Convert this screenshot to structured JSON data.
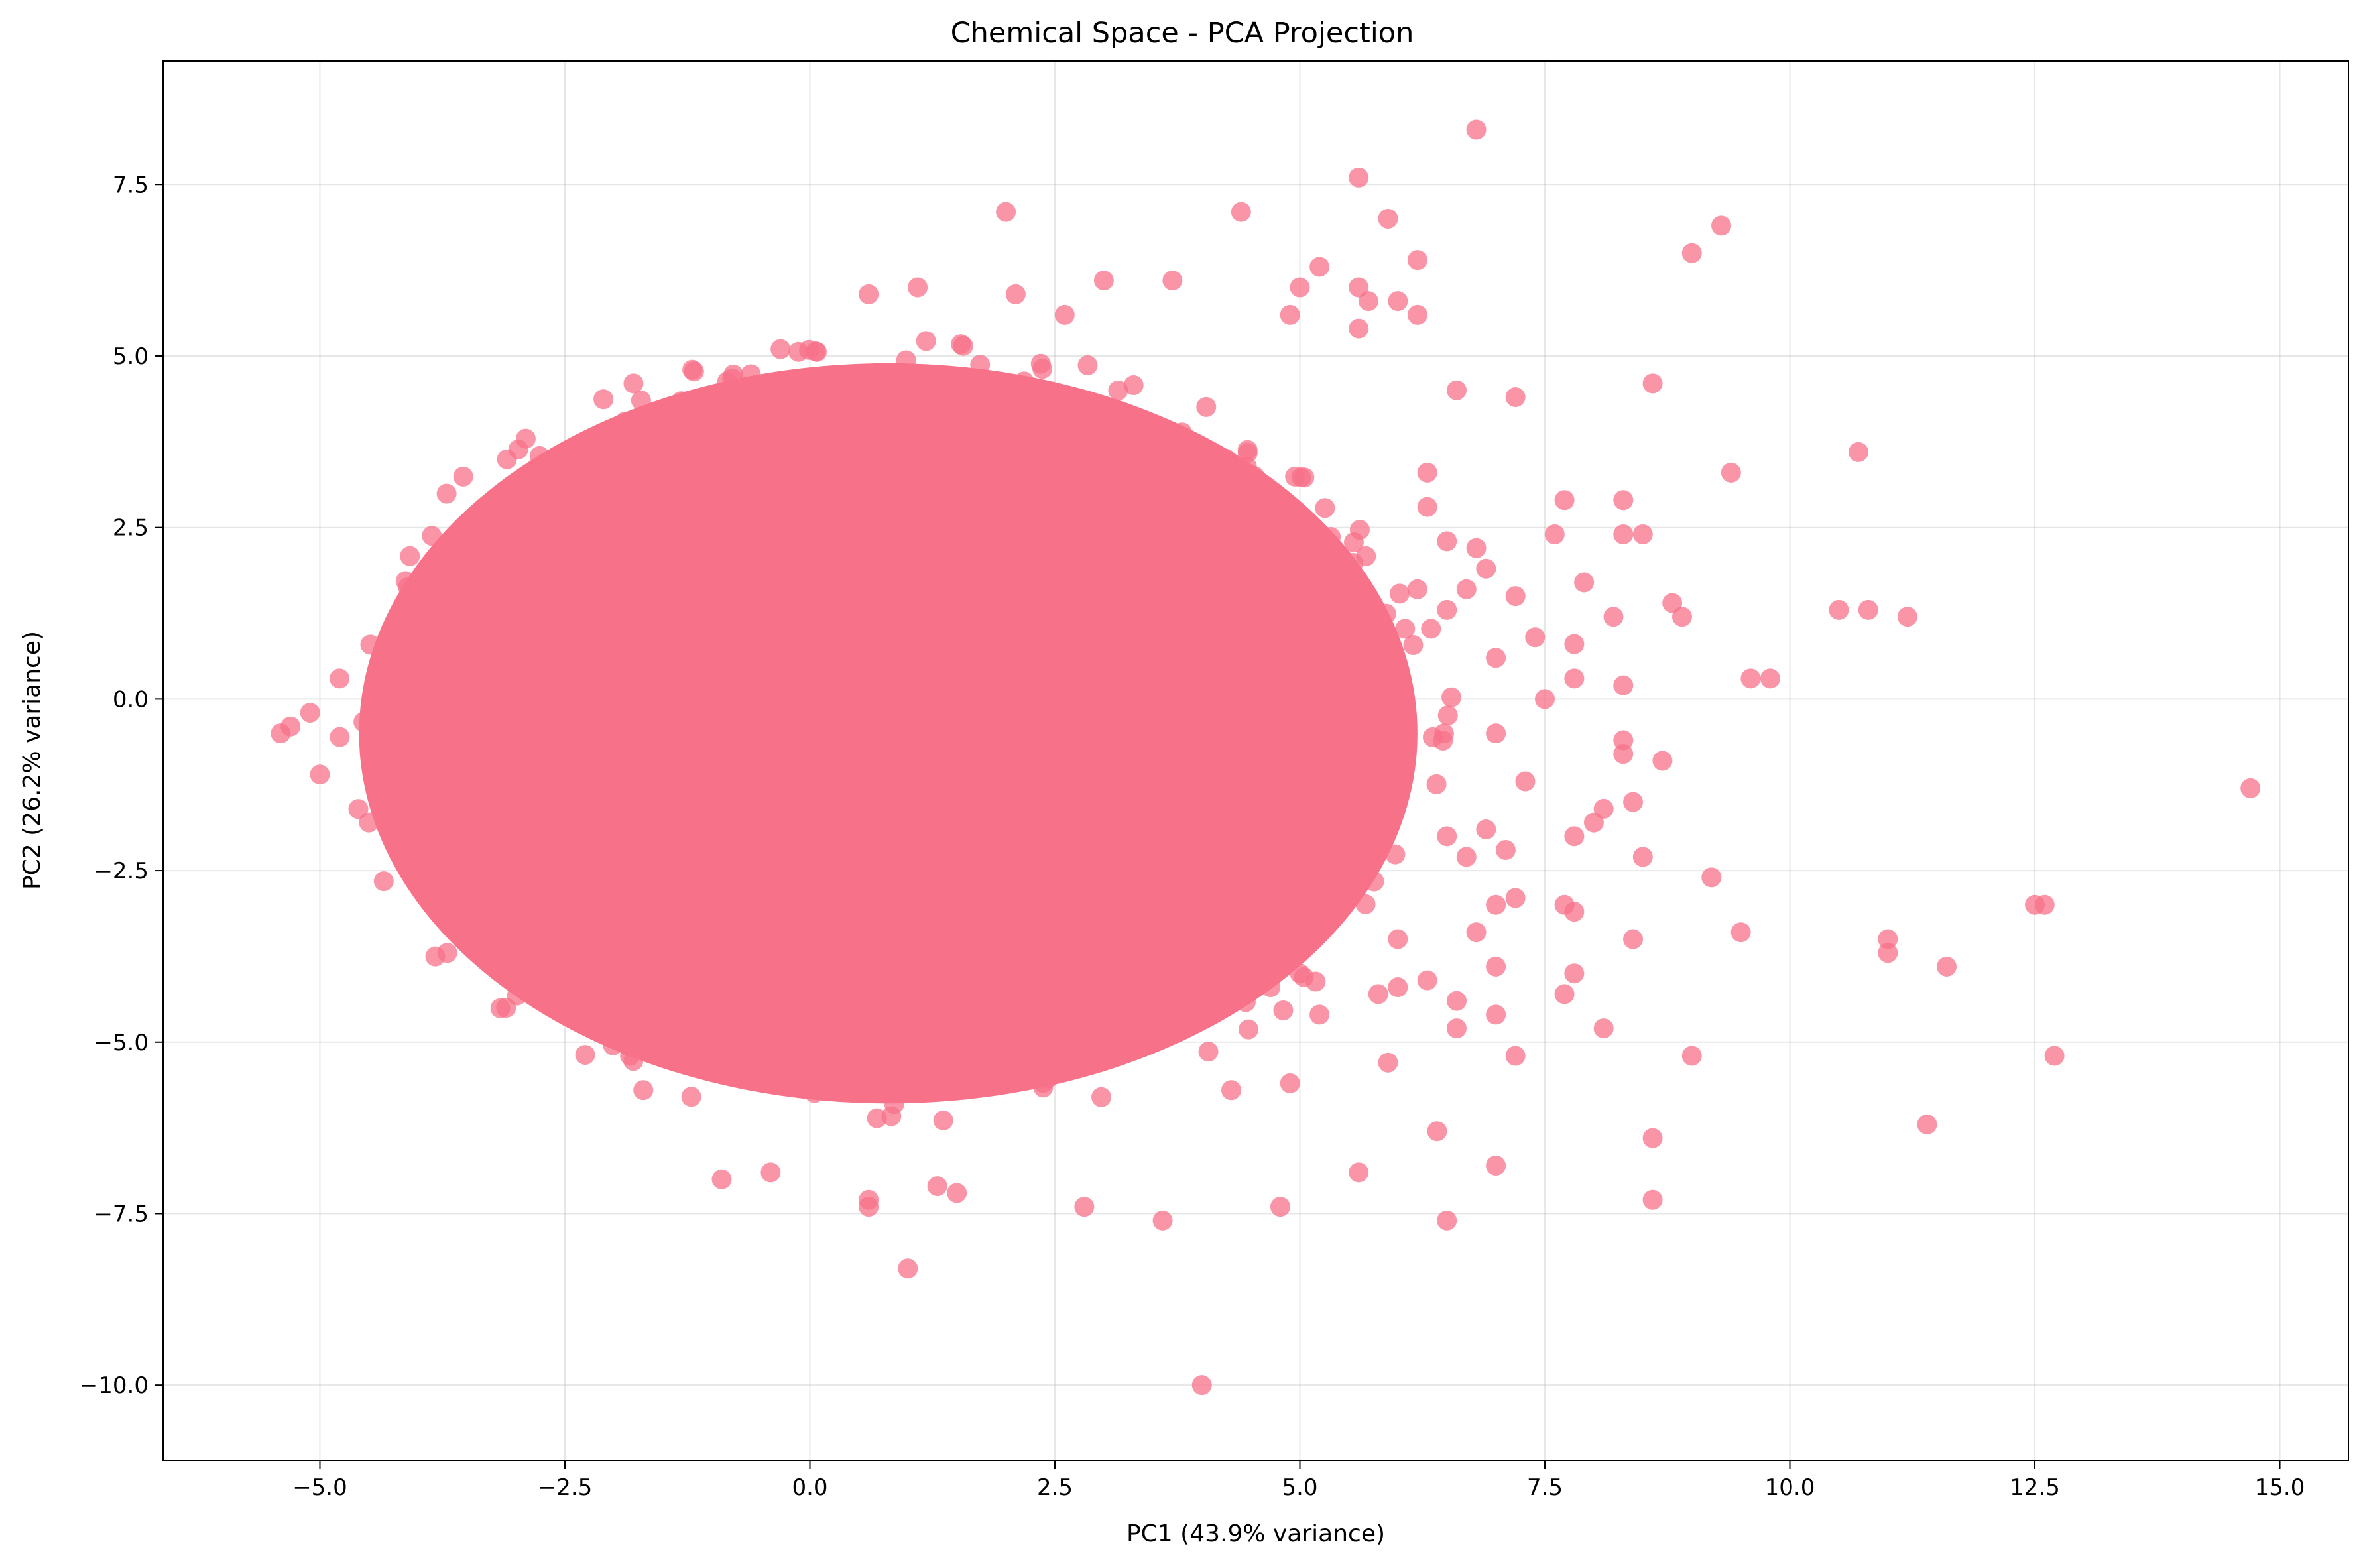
{
  "chart_data": {
    "type": "scatter",
    "title": "Chemical Space - PCA Projection",
    "xlabel": "PC1 (43.9% variance)",
    "ylabel": "PC2 (26.2% variance)",
    "xlim": [
      -6.6,
      15.7
    ],
    "ylim": [
      -11.1,
      9.3
    ],
    "xticks": [
      -5.0,
      -2.5,
      0.0,
      2.5,
      5.0,
      7.5,
      10.0,
      12.5,
      15.0
    ],
    "xtick_labels": [
      "−5.0",
      "−2.5",
      "0.0",
      "2.5",
      "5.0",
      "7.5",
      "10.0",
      "12.5",
      "15.0"
    ],
    "yticks": [
      -10.0,
      -7.5,
      -5.0,
      -2.5,
      0.0,
      2.5,
      5.0,
      7.5
    ],
    "ytick_labels": [
      "−10.0",
      "−7.5",
      "−5.0",
      "−2.5",
      "0.0",
      "2.5",
      "5.0",
      "7.5"
    ],
    "grid": true,
    "legend": "none",
    "marker_color": "#f77189",
    "marker_alpha": 0.75,
    "dense_core": {
      "description_is_not_rendered": false,
      "x_range": [
        -4.6,
        6.2
      ],
      "y_range": [
        -6.0,
        5.6
      ],
      "center": [
        0.8,
        -0.5
      ]
    },
    "points": [
      {
        "x": 6.8,
        "y": 8.3
      },
      {
        "x": 5.6,
        "y": 7.6
      },
      {
        "x": 4.4,
        "y": 7.1
      },
      {
        "x": 2.0,
        "y": 7.1
      },
      {
        "x": 9.3,
        "y": 6.9
      },
      {
        "x": 5.9,
        "y": 7.0
      },
      {
        "x": 9.0,
        "y": 6.5
      },
      {
        "x": 6.2,
        "y": 6.4
      },
      {
        "x": 10.7,
        "y": 3.6
      },
      {
        "x": 9.4,
        "y": 3.3
      },
      {
        "x": 8.6,
        "y": 4.6
      },
      {
        "x": 7.2,
        "y": 4.4
      },
      {
        "x": 6.6,
        "y": 4.5
      },
      {
        "x": 7.7,
        "y": 2.9
      },
      {
        "x": 8.3,
        "y": 2.9
      },
      {
        "x": 8.5,
        "y": 2.4
      },
      {
        "x": 8.3,
        "y": 2.4
      },
      {
        "x": 7.6,
        "y": 2.4
      },
      {
        "x": 10.5,
        "y": 1.3
      },
      {
        "x": 10.8,
        "y": 1.3
      },
      {
        "x": 11.2,
        "y": 1.2
      },
      {
        "x": 8.8,
        "y": 1.4
      },
      {
        "x": 8.9,
        "y": 1.2
      },
      {
        "x": 8.2,
        "y": 1.2
      },
      {
        "x": 7.9,
        "y": 1.7
      },
      {
        "x": 9.6,
        "y": 0.3
      },
      {
        "x": 9.8,
        "y": 0.3
      },
      {
        "x": 8.3,
        "y": 0.2
      },
      {
        "x": 7.8,
        "y": 0.3
      },
      {
        "x": 7.8,
        "y": 0.8
      },
      {
        "x": 14.7,
        "y": -1.3
      },
      {
        "x": 12.5,
        "y": -3.0
      },
      {
        "x": 12.6,
        "y": -3.0
      },
      {
        "x": 12.7,
        "y": -5.2
      },
      {
        "x": 11.0,
        "y": -3.5
      },
      {
        "x": 11.0,
        "y": -3.7
      },
      {
        "x": 11.6,
        "y": -3.9
      },
      {
        "x": 11.4,
        "y": -6.2
      },
      {
        "x": 9.5,
        "y": -3.4
      },
      {
        "x": 9.2,
        "y": -2.6
      },
      {
        "x": 9.0,
        "y": -5.2
      },
      {
        "x": 8.6,
        "y": -6.4
      },
      {
        "x": 8.6,
        "y": -7.3
      },
      {
        "x": 8.4,
        "y": -3.5
      },
      {
        "x": 8.5,
        "y": -2.3
      },
      {
        "x": 8.4,
        "y": -1.5
      },
      {
        "x": 8.7,
        "y": -0.9
      },
      {
        "x": 8.3,
        "y": -0.6
      },
      {
        "x": 8.3,
        "y": -0.8
      },
      {
        "x": 8.0,
        "y": -1.8
      },
      {
        "x": 8.1,
        "y": -1.6
      },
      {
        "x": 7.8,
        "y": -2.0
      },
      {
        "x": 7.7,
        "y": -3.0
      },
      {
        "x": 7.8,
        "y": -3.1
      },
      {
        "x": 7.8,
        "y": -4.0
      },
      {
        "x": 7.7,
        "y": -4.3
      },
      {
        "x": 8.1,
        "y": -4.8
      },
      {
        "x": 7.2,
        "y": -5.2
      },
      {
        "x": 7.0,
        "y": -6.8
      },
      {
        "x": 6.4,
        "y": -6.3
      },
      {
        "x": 6.5,
        "y": -7.6
      },
      {
        "x": 5.6,
        "y": -6.9
      },
      {
        "x": 4.8,
        "y": -7.4
      },
      {
        "x": 4.0,
        "y": -10.0
      },
      {
        "x": 3.6,
        "y": -7.6
      },
      {
        "x": 2.8,
        "y": -7.4
      },
      {
        "x": 1.0,
        "y": -8.3
      },
      {
        "x": 0.6,
        "y": -7.3
      },
      {
        "x": 0.6,
        "y": -7.4
      },
      {
        "x": 1.3,
        "y": -7.1
      },
      {
        "x": 1.5,
        "y": -7.2
      },
      {
        "x": -0.9,
        "y": -7.0
      },
      {
        "x": -0.4,
        "y": -6.9
      },
      {
        "x": -5.4,
        "y": -0.5
      },
      {
        "x": -5.3,
        "y": -0.4
      },
      {
        "x": -5.1,
        "y": -0.2
      },
      {
        "x": -5.0,
        "y": -1.1
      },
      {
        "x": -4.8,
        "y": 0.3
      },
      {
        "x": -4.5,
        "y": -1.8
      },
      {
        "x": -3.7,
        "y": -3.7
      },
      {
        "x": -3.1,
        "y": -4.5
      },
      {
        "x": -2.4,
        "y": -4.5
      },
      {
        "x": -1.7,
        "y": -5.7
      },
      {
        "x": -1.2,
        "y": 4.8
      },
      {
        "x": -1.8,
        "y": 4.6
      },
      {
        "x": -0.3,
        "y": 5.1
      },
      {
        "x": 0.6,
        "y": 5.9
      },
      {
        "x": 1.1,
        "y": 6.0
      },
      {
        "x": 2.1,
        "y": 5.9
      },
      {
        "x": 2.6,
        "y": 5.6
      },
      {
        "x": 3.0,
        "y": 6.1
      },
      {
        "x": 3.7,
        "y": 6.1
      },
      {
        "x": 5.0,
        "y": 6.0
      },
      {
        "x": 5.2,
        "y": 6.3
      },
      {
        "x": 5.6,
        "y": 6.0
      },
      {
        "x": 6.0,
        "y": 5.8
      },
      {
        "x": 6.2,
        "y": 5.6
      },
      {
        "x": 5.7,
        "y": 5.8
      },
      {
        "x": 5.6,
        "y": 5.4
      },
      {
        "x": 4.9,
        "y": 5.6
      },
      {
        "x": 7.4,
        "y": 0.9
      },
      {
        "x": 7.2,
        "y": 1.5
      },
      {
        "x": 7.0,
        "y": 0.6
      },
      {
        "x": 7.5,
        "y": 0.0
      },
      {
        "x": 7.0,
        "y": -0.5
      },
      {
        "x": 7.3,
        "y": -1.2
      },
      {
        "x": 7.1,
        "y": -2.2
      },
      {
        "x": 7.0,
        "y": -3.0
      },
      {
        "x": 7.2,
        "y": -2.9
      },
      {
        "x": 7.0,
        "y": -3.9
      },
      {
        "x": 7.0,
        "y": -4.6
      },
      {
        "x": 6.6,
        "y": -4.4
      },
      {
        "x": 6.6,
        "y": -4.8
      },
      {
        "x": 6.8,
        "y": -3.4
      },
      {
        "x": 6.7,
        "y": -2.3
      },
      {
        "x": 6.9,
        "y": -1.9
      },
      {
        "x": 6.5,
        "y": -2.0
      },
      {
        "x": 6.3,
        "y": -4.1
      },
      {
        "x": 6.0,
        "y": -4.2
      },
      {
        "x": 5.9,
        "y": -5.3
      },
      {
        "x": 5.8,
        "y": -4.3
      },
      {
        "x": 6.0,
        "y": -3.5
      },
      {
        "x": 5.2,
        "y": -4.6
      },
      {
        "x": 5.0,
        "y": -4.0
      },
      {
        "x": 4.9,
        "y": -5.6
      },
      {
        "x": 4.7,
        "y": -4.2
      },
      {
        "x": 4.3,
        "y": -5.7
      },
      {
        "x": 6.5,
        "y": 2.3
      },
      {
        "x": 6.8,
        "y": 2.2
      },
      {
        "x": 6.3,
        "y": 2.8
      },
      {
        "x": 6.3,
        "y": 3.3
      },
      {
        "x": 6.5,
        "y": 1.3
      },
      {
        "x": 6.7,
        "y": 1.6
      },
      {
        "x": 6.9,
        "y": 1.9
      },
      {
        "x": 6.2,
        "y": 1.6
      }
    ]
  }
}
